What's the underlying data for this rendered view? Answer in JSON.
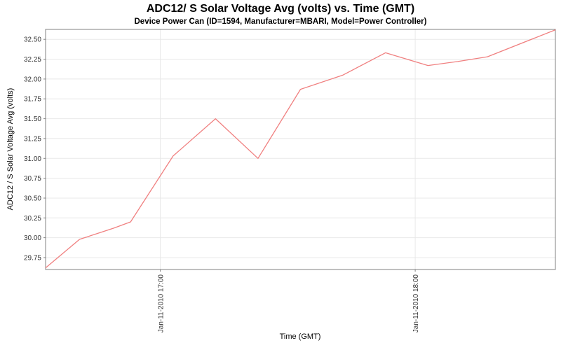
{
  "chart_data": {
    "type": "line",
    "title": "ADC12/ S Solar Voltage Avg (volts) vs. Time (GMT)",
    "subtitle": "Device Power Can (ID=1594, Manufacturer=MBARI, Model=Power Controller)",
    "xlabel": "Time (GMT)",
    "ylabel": "ADC12 / S Solar Voltage Avg (volts)",
    "legend": "none",
    "grid": true,
    "x_axis": {
      "lim_minutes": [
        0,
        120
      ],
      "ticks": [
        {
          "pos_min": 27,
          "label": "Jan-11-2010 17:00"
        },
        {
          "pos_min": 87,
          "label": "Jan-11-2010 18:00"
        }
      ]
    },
    "y_axis": {
      "lim": [
        29.6,
        32.625
      ],
      "ticks": [
        29.75,
        30.0,
        30.25,
        30.5,
        30.75,
        31.0,
        31.25,
        31.5,
        31.75,
        32.0,
        32.25,
        32.5
      ]
    },
    "series": [
      {
        "name": "ADC12 / S Solar Voltage Avg",
        "color": "#f08080",
        "points": [
          {
            "t": 0,
            "v": 29.62
          },
          {
            "t": 8,
            "v": 29.98
          },
          {
            "t": 16,
            "v": 30.12
          },
          {
            "t": 20,
            "v": 30.2
          },
          {
            "t": 30,
            "v": 31.03
          },
          {
            "t": 40,
            "v": 31.5
          },
          {
            "t": 50,
            "v": 31.0
          },
          {
            "t": 60,
            "v": 31.87
          },
          {
            "t": 70,
            "v": 32.05
          },
          {
            "t": 80,
            "v": 32.33
          },
          {
            "t": 90,
            "v": 32.17
          },
          {
            "t": 97,
            "v": 32.22
          },
          {
            "t": 104,
            "v": 32.28
          },
          {
            "t": 120,
            "v": 32.62
          }
        ]
      }
    ]
  },
  "style": {
    "line_color": "#f08080",
    "grid_color": "#e8e8e8",
    "axis_color": "#808080",
    "tick_label_color": "#333333",
    "background": "#ffffff"
  }
}
